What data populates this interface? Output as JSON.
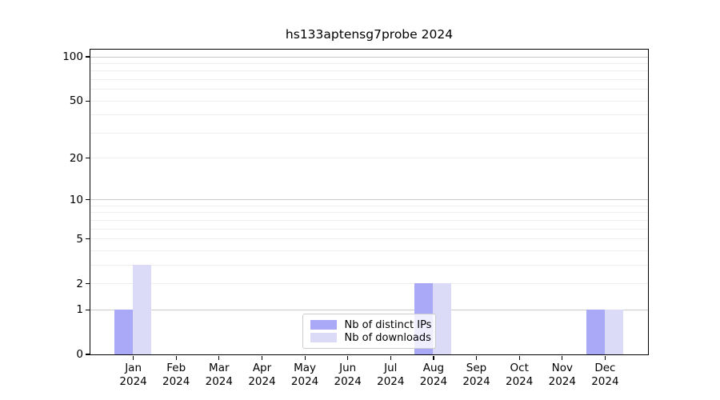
{
  "page": {
    "background": "#ffffff"
  },
  "chart_data": {
    "type": "bar",
    "title": "hs133aptensg7probe 2024",
    "categories": [
      "Jan",
      "Feb",
      "Mar",
      "Apr",
      "May",
      "Jun",
      "Jul",
      "Aug",
      "Sep",
      "Oct",
      "Nov",
      "Dec"
    ],
    "category_year": "2024",
    "series": [
      {
        "name": "Nb of distinct IPs",
        "color": "#a9a9f8",
        "values": [
          1,
          0,
          0,
          0,
          0,
          0,
          0,
          2,
          0,
          0,
          0,
          1
        ]
      },
      {
        "name": "Nb of downloads",
        "color": "#dbdbf8",
        "values": [
          3,
          0,
          0,
          0,
          0,
          0,
          0,
          2,
          0,
          0,
          0,
          1
        ]
      }
    ],
    "yscale": "log1p",
    "yticks": [
      0,
      1,
      2,
      5,
      10,
      20,
      50,
      100
    ],
    "ylim": [
      0,
      112
    ],
    "grid": {
      "minor_values": [
        2,
        3,
        4,
        5,
        6,
        7,
        8,
        9,
        20,
        30,
        40,
        50,
        60,
        70,
        80,
        90
      ],
      "major_values": [
        1,
        10,
        100
      ],
      "minor_color": "#eeeeee",
      "major_color": "#c9c9c9"
    },
    "legend": {
      "position": "lower center",
      "frame_color": "#cccccc"
    }
  }
}
